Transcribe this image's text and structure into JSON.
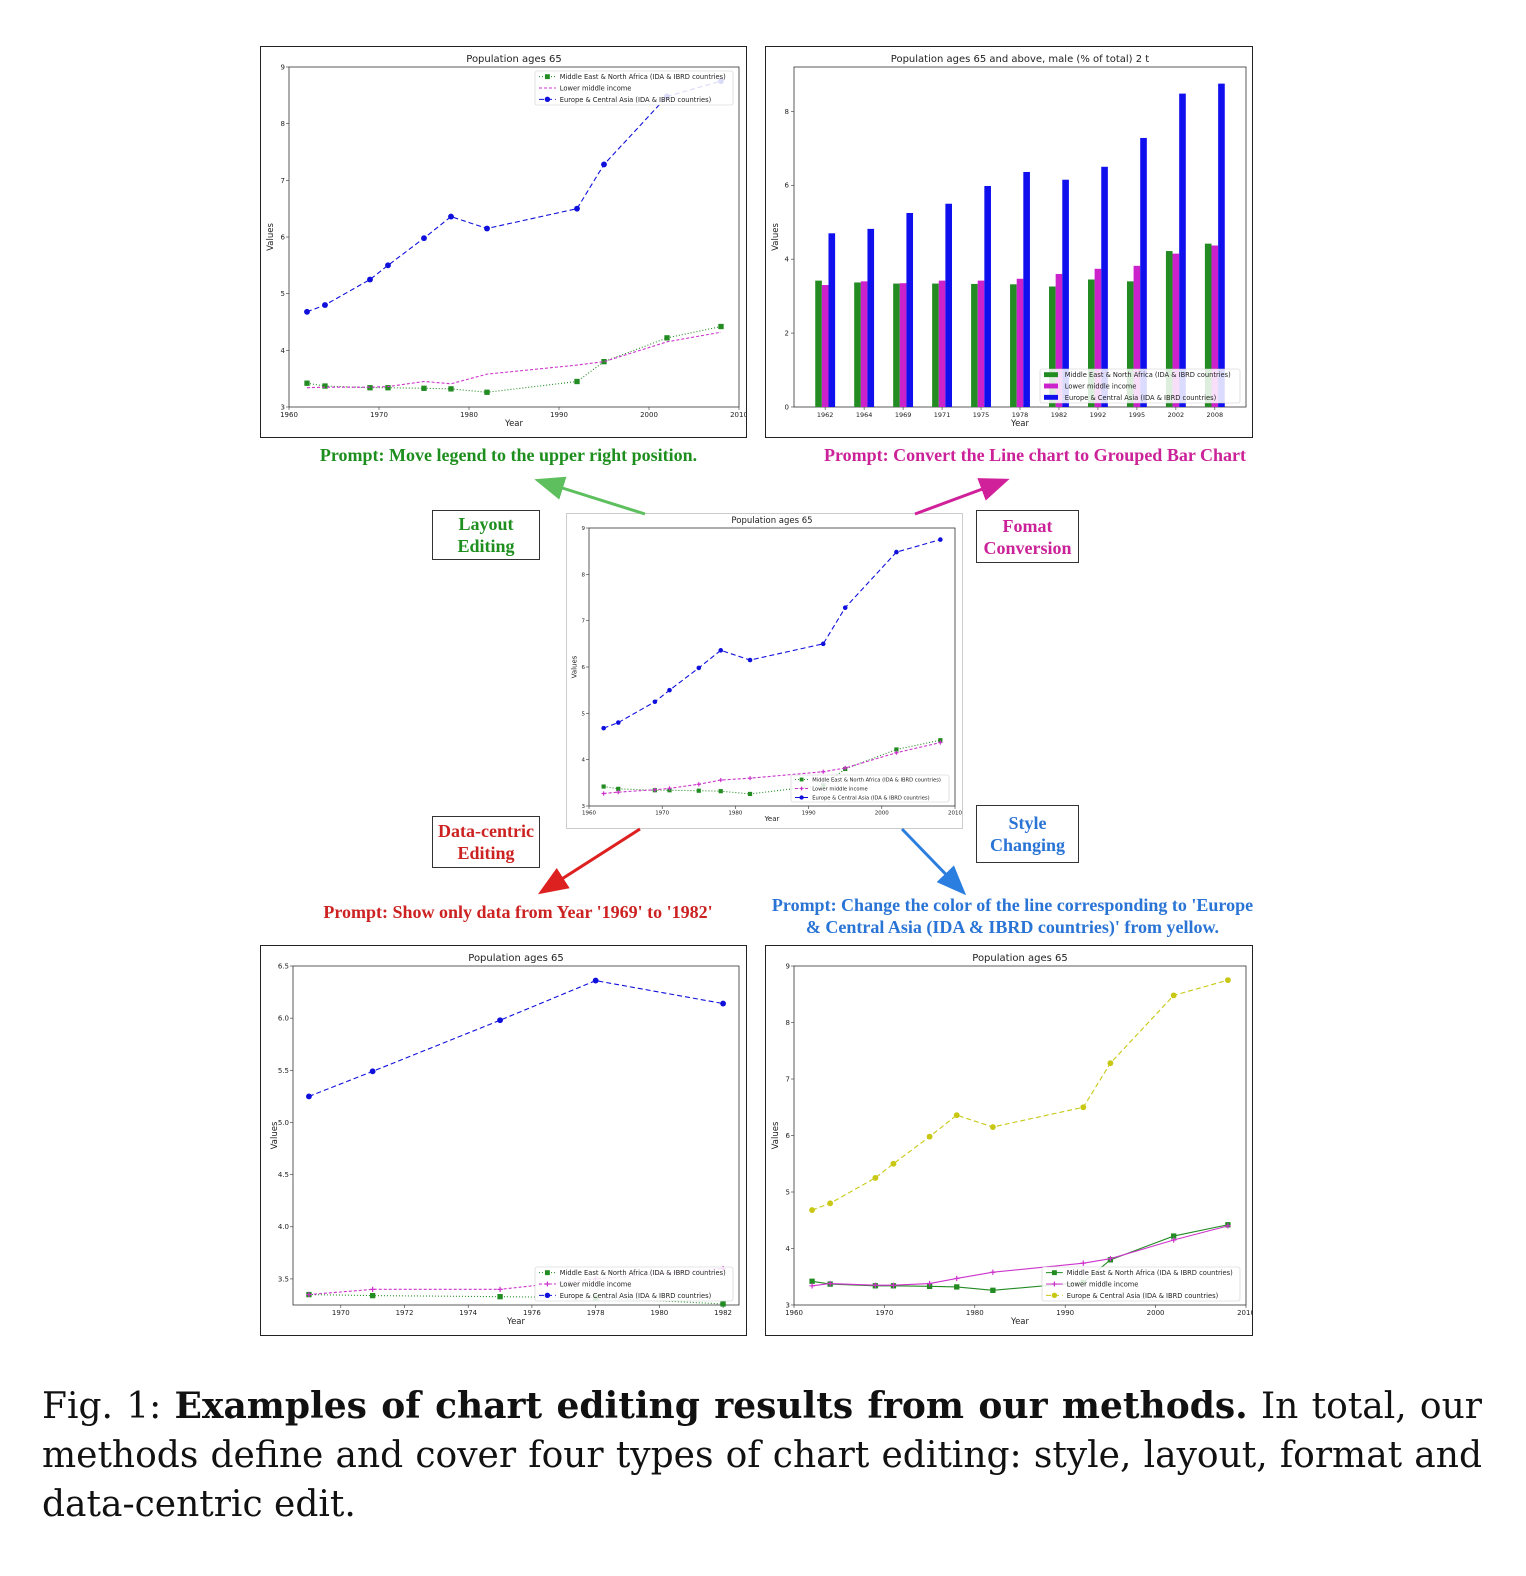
{
  "colors": {
    "green_prompt": "#1e8f1e",
    "magenta_prompt": "#cc2299",
    "red_prompt": "#cc2222",
    "blue_prompt": "#2a74d6",
    "series_green": "#228b22",
    "series_magenta": "#cc33cc",
    "series_blue": "#1010dd",
    "series_yellow": "#c8c814"
  },
  "prompts": {
    "layout": "Prompt: Move legend to the upper right position.",
    "format": "Prompt: Convert the Line chart to Grouped Bar Chart",
    "data": "Prompt: Show only data from Year '1969' to '1982'",
    "style_line1": "Prompt: Change the color of the line corresponding to 'Europe",
    "style_line2": "& Central Asia (IDA & IBRD countries)' from yellow."
  },
  "tags": {
    "layout_1": "Layout",
    "layout_2": "Editing",
    "format_1": "Fomat",
    "format_2": "Conversion",
    "data_1": "Data-centric",
    "data_2": "Editing",
    "style_1": "Style",
    "style_2": "Changing"
  },
  "caption": {
    "label": "Fig. 1: ",
    "bold": "Examples of chart editing results from our methods.",
    "rest": " In total, our methods define and cover four types of chart editing: style, layout, format and data-centric edit."
  },
  "chart_data": [
    {
      "id": "center",
      "type": "line",
      "title": "Population ages 65",
      "xlabel": "Year",
      "ylabel": "Values",
      "xlim": [
        1960,
        2010
      ],
      "ylim": [
        3,
        9
      ],
      "xticks": [
        1960,
        1970,
        1980,
        1990,
        2000,
        2010
      ],
      "yticks": [
        3,
        4,
        5,
        6,
        7,
        8,
        9
      ],
      "legend": "lower-right",
      "x": [
        1962,
        1964,
        1969,
        1971,
        1975,
        1978,
        1982,
        1992,
        1995,
        2002,
        2008
      ],
      "series": [
        {
          "name": "Middle East & North Africa (IDA & IBRD countries)",
          "color": "#228b22",
          "marker": "square",
          "dash": "1,2",
          "values": [
            3.42,
            3.37,
            3.34,
            3.34,
            3.33,
            3.32,
            3.26,
            3.45,
            3.8,
            4.22,
            4.42
          ]
        },
        {
          "name": "Lower middle income",
          "color": "#cc33cc",
          "marker": "plus",
          "dash": "3,2",
          "values": [
            3.27,
            3.3,
            3.35,
            3.38,
            3.47,
            3.56,
            3.6,
            3.74,
            3.82,
            4.15,
            4.37
          ]
        },
        {
          "name": "Europe & Central Asia (IDA & IBRD countries)",
          "color": "#1010dd",
          "marker": "circle",
          "dash": "5,3",
          "values": [
            4.68,
            4.8,
            5.25,
            5.5,
            5.98,
            6.36,
            6.15,
            6.5,
            7.28,
            8.48,
            8.75
          ]
        }
      ]
    },
    {
      "id": "layout",
      "type": "line",
      "title": "Population ages 65",
      "xlabel": "Year",
      "ylabel": "Values",
      "xlim": [
        1960,
        2010
      ],
      "ylim": [
        3,
        9
      ],
      "xticks": [
        1960,
        1970,
        1980,
        1990,
        2000,
        2010
      ],
      "yticks": [
        3,
        4,
        5,
        6,
        7,
        8,
        9
      ],
      "legend": "upper-right",
      "x": [
        1962,
        1964,
        1969,
        1971,
        1975,
        1978,
        1982,
        1992,
        1995,
        2002,
        2008
      ],
      "series": [
        {
          "name": "Middle East & North Africa (IDA & IBRD countries)",
          "color": "#228b22",
          "marker": "square",
          "dash": "1,2",
          "values": [
            3.42,
            3.37,
            3.34,
            3.34,
            3.33,
            3.32,
            3.26,
            3.45,
            3.8,
            4.22,
            4.42
          ]
        },
        {
          "name": "Lower middle income",
          "color": "#cc33cc",
          "marker": "none",
          "dash": "3,2",
          "values": [
            3.34,
            3.35,
            3.35,
            3.36,
            3.45,
            3.41,
            3.58,
            3.74,
            3.8,
            4.15,
            4.32
          ]
        },
        {
          "name": "Europe & Central Asia (IDA & IBRD countries)",
          "color": "#1010dd",
          "marker": "circle",
          "dash": "5,3",
          "values": [
            4.68,
            4.8,
            5.25,
            5.5,
            5.98,
            6.36,
            6.15,
            6.5,
            7.28,
            8.48,
            8.75
          ]
        }
      ]
    },
    {
      "id": "format",
      "type": "bar",
      "title": "Population ages 65 and above, male (% of total) 2 t",
      "xlabel": "Year",
      "ylabel": "Values",
      "ylim": [
        0,
        9.2
      ],
      "yticks": [
        0,
        2,
        4,
        6,
        8
      ],
      "legend": "lower-right",
      "categories": [
        "1962",
        "1964",
        "1969",
        "1971",
        "1975",
        "1978",
        "1982",
        "1992",
        "1995",
        "2002",
        "2008"
      ],
      "series": [
        {
          "name": "Middle East & North Africa (IDA & IBRD countries)",
          "color": "#228b22",
          "values": [
            3.42,
            3.37,
            3.34,
            3.34,
            3.33,
            3.32,
            3.26,
            3.45,
            3.4,
            4.22,
            4.42
          ]
        },
        {
          "name": "Lower middle income",
          "color": "#cc22cc",
          "values": [
            3.3,
            3.4,
            3.35,
            3.42,
            3.42,
            3.47,
            3.6,
            3.74,
            3.82,
            4.15,
            4.37
          ]
        },
        {
          "name": "Europe & Central Asia (IDA & IBRD countries)",
          "color": "#1010ee",
          "values": [
            4.7,
            4.82,
            5.25,
            5.5,
            5.98,
            6.36,
            6.15,
            6.5,
            7.28,
            8.48,
            8.75
          ]
        }
      ]
    },
    {
      "id": "data",
      "type": "line",
      "title": "Population ages 65",
      "xlabel": "Year",
      "ylabel": "Values",
      "xlim": [
        1968.5,
        1982.5
      ],
      "ylim": [
        3.25,
        6.5
      ],
      "xticks": [
        1970,
        1972,
        1974,
        1976,
        1978,
        1980,
        1982
      ],
      "yticks": [
        3.5,
        4.0,
        4.5,
        5.0,
        5.5,
        6.0,
        6.5
      ],
      "ytickfmt": 1,
      "legend": "lower-right",
      "x": [
        1969,
        1971,
        1975,
        1978,
        1982
      ],
      "series": [
        {
          "name": "Middle East & North Africa (IDA & IBRD countries)",
          "color": "#228b22",
          "marker": "square",
          "dash": "1,2",
          "values": [
            3.35,
            3.34,
            3.33,
            3.32,
            3.26
          ]
        },
        {
          "name": "Lower middle income",
          "color": "#cc33cc",
          "marker": "plus",
          "dash": "3,2",
          "values": [
            3.35,
            3.4,
            3.4,
            3.5,
            3.6
          ]
        },
        {
          "name": "Europe & Central Asia (IDA & IBRD countries)",
          "color": "#1010dd",
          "marker": "circle",
          "dash": "5,3",
          "values": [
            5.25,
            5.49,
            5.98,
            6.36,
            6.14
          ]
        }
      ]
    },
    {
      "id": "style",
      "type": "line",
      "title": "Population ages 65",
      "xlabel": "Year",
      "ylabel": "Values",
      "xlim": [
        1960,
        2010
      ],
      "ylim": [
        3,
        9
      ],
      "xticks": [
        1960,
        1970,
        1980,
        1990,
        2000,
        2010
      ],
      "yticks": [
        3,
        4,
        5,
        6,
        7,
        8,
        9
      ],
      "legend": "lower-right",
      "x": [
        1962,
        1964,
        1969,
        1971,
        1975,
        1978,
        1982,
        1992,
        1995,
        2002,
        2008
      ],
      "series": [
        {
          "name": "Middle East & North Africa (IDA & IBRD countries)",
          "color": "#228b22",
          "marker": "square",
          "dash": "none",
          "values": [
            3.42,
            3.37,
            3.34,
            3.34,
            3.33,
            3.32,
            3.26,
            3.4,
            3.8,
            4.22,
            4.42
          ]
        },
        {
          "name": "Lower middle income",
          "color": "#cc33cc",
          "marker": "plus",
          "dash": "none",
          "values": [
            3.34,
            3.38,
            3.35,
            3.35,
            3.38,
            3.47,
            3.58,
            3.74,
            3.82,
            4.15,
            4.4
          ]
        },
        {
          "name": "Europe & Central Asia (IDA & IBRD countries)",
          "color": "#c8c814",
          "marker": "circle",
          "dash": "5,3",
          "values": [
            4.68,
            4.8,
            5.25,
            5.5,
            5.98,
            6.36,
            6.15,
            6.5,
            7.28,
            8.48,
            8.75
          ]
        }
      ]
    }
  ]
}
